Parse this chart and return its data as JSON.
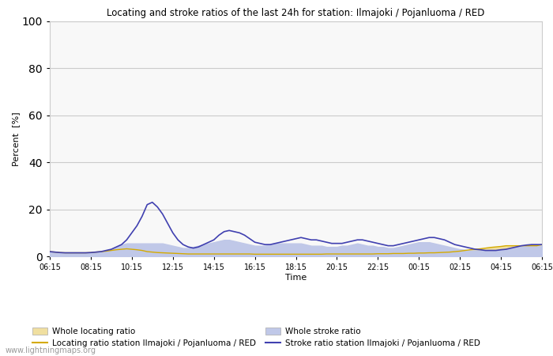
{
  "title": "Locating and stroke ratios of the last 24h for station: Ilmajoki / Pojanluoma / RED",
  "xlabel": "Time",
  "ylabel": "Percent  [%]",
  "ylim": [
    0,
    100
  ],
  "yticks": [
    0,
    20,
    40,
    60,
    80,
    100
  ],
  "x_labels": [
    "06:15",
    "08:15",
    "10:15",
    "12:15",
    "14:15",
    "16:15",
    "18:15",
    "20:15",
    "22:15",
    "00:15",
    "02:15",
    "04:15",
    "06:15"
  ],
  "watermark": "www.lightningmaps.org",
  "bg_color": "#ffffff",
  "plot_bg_color": "#f8f8f8",
  "grid_color": "#cccccc",
  "locating_line_color": "#d4aa00",
  "locating_fill_color": "#f0dfa0",
  "stroke_line_color": "#4040b0",
  "stroke_fill_color": "#c0c8e8",
  "n_points": 97,
  "locating_ratio": [
    2.0,
    1.8,
    1.6,
    1.5,
    1.5,
    1.5,
    1.5,
    1.5,
    1.6,
    1.8,
    2.0,
    2.2,
    2.5,
    2.8,
    3.0,
    3.2,
    3.0,
    2.8,
    2.5,
    2.0,
    1.8,
    1.6,
    1.5,
    1.4,
    1.3,
    1.2,
    1.1,
    1.0,
    1.0,
    1.0,
    1.0,
    1.0,
    1.0,
    1.0,
    1.0,
    1.0,
    1.0,
    1.0,
    1.0,
    1.0,
    0.9,
    0.9,
    0.9,
    0.9,
    0.9,
    0.9,
    0.9,
    0.9,
    0.9,
    0.9,
    0.9,
    0.9,
    0.9,
    0.9,
    1.0,
    1.0,
    1.0,
    1.0,
    1.0,
    1.0,
    1.0,
    1.0,
    1.0,
    1.0,
    1.1,
    1.1,
    1.1,
    1.2,
    1.2,
    1.2,
    1.3,
    1.3,
    1.4,
    1.4,
    1.5,
    1.5,
    1.6,
    1.7,
    1.8,
    2.0,
    2.2,
    2.5,
    2.8,
    3.0,
    3.2,
    3.5,
    3.8,
    4.0,
    4.2,
    4.5,
    4.5,
    4.5,
    4.5,
    4.5,
    4.5,
    4.5,
    5.0
  ],
  "stroke_ratio": [
    2.0,
    1.8,
    1.6,
    1.5,
    1.5,
    1.5,
    1.5,
    1.5,
    1.6,
    1.8,
    2.0,
    2.5,
    3.0,
    4.0,
    5.0,
    7.0,
    10.0,
    13.0,
    17.0,
    22.0,
    23.0,
    21.0,
    18.0,
    14.0,
    10.0,
    7.0,
    5.0,
    4.0,
    3.5,
    4.0,
    5.0,
    6.0,
    7.0,
    9.0,
    10.5,
    11.0,
    10.5,
    10.0,
    9.0,
    7.5,
    6.0,
    5.5,
    5.0,
    5.0,
    5.5,
    6.0,
    6.5,
    7.0,
    7.5,
    8.0,
    7.5,
    7.0,
    7.0,
    6.5,
    6.0,
    5.5,
    5.5,
    5.5,
    6.0,
    6.5,
    7.0,
    7.0,
    6.5,
    6.0,
    5.5,
    5.0,
    4.5,
    4.5,
    5.0,
    5.5,
    6.0,
    6.5,
    7.0,
    7.5,
    8.0,
    8.0,
    7.5,
    7.0,
    6.0,
    5.0,
    4.5,
    4.0,
    3.5,
    3.0,
    2.8,
    2.5,
    2.5,
    2.5,
    2.8,
    3.0,
    3.5,
    4.0,
    4.5,
    4.8,
    5.0,
    5.0,
    5.0
  ],
  "stroke_fill": [
    2.0,
    1.8,
    1.6,
    1.5,
    1.5,
    1.5,
    1.5,
    1.5,
    1.6,
    1.8,
    2.0,
    2.5,
    3.0,
    4.0,
    5.0,
    5.5,
    5.5,
    5.5,
    5.5,
    5.5,
    5.5,
    5.5,
    5.5,
    5.0,
    4.5,
    4.0,
    3.5,
    3.5,
    4.0,
    4.5,
    5.0,
    5.5,
    6.0,
    6.5,
    7.0,
    7.0,
    6.5,
    6.0,
    5.5,
    5.0,
    4.5,
    4.5,
    4.5,
    5.0,
    5.5,
    5.5,
    5.5,
    5.5,
    5.5,
    5.5,
    5.0,
    4.5,
    4.5,
    4.5,
    4.0,
    4.0,
    4.0,
    4.5,
    4.5,
    5.0,
    5.5,
    5.0,
    4.5,
    4.5,
    4.0,
    4.0,
    3.5,
    3.5,
    4.0,
    4.5,
    5.0,
    5.5,
    6.0,
    6.0,
    6.0,
    5.5,
    5.0,
    4.5,
    4.0,
    3.5,
    3.0,
    2.8,
    2.5,
    2.5,
    2.5,
    2.5,
    2.5,
    2.5,
    2.8,
    3.0,
    3.5,
    4.0,
    4.5,
    4.5,
    4.5,
    4.5,
    4.5
  ]
}
